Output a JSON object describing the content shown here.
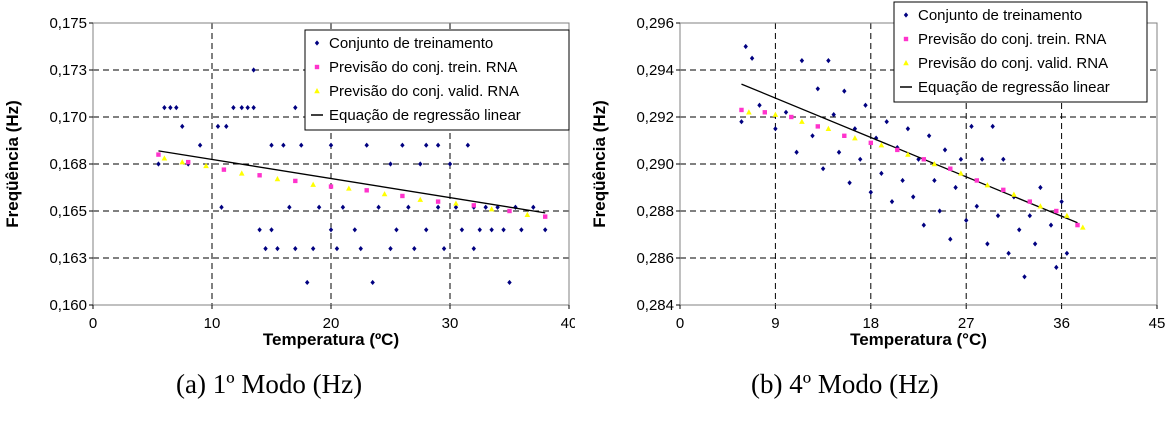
{
  "charts": [
    {
      "caption": "(a) 1º Modo (Hz)",
      "chart_data": {
        "type": "scatter",
        "xlabel": "Temperatura (ºC)",
        "ylabel": "Freqüência (Hz)",
        "xlim": [
          0,
          40
        ],
        "ylim": [
          0.16,
          0.175
        ],
        "x_ticks": [
          "0",
          "10",
          "20",
          "30",
          "40"
        ],
        "y_ticks": [
          "0,160",
          "0,163",
          "0,165",
          "0,168",
          "0,170",
          "0,173",
          "0,175"
        ],
        "grid": true,
        "legend_position": "top-right",
        "series": [
          {
            "name": "Conjunto de treinamento",
            "marker": "diamond",
            "color": "#000080",
            "points": [
              [
                5.5,
                0.1675
              ],
              [
                6,
                0.1705
              ],
              [
                6.5,
                0.1705
              ],
              [
                7,
                0.1705
              ],
              [
                7.5,
                0.1695
              ],
              [
                8,
                0.1675
              ],
              [
                9,
                0.1685
              ],
              [
                10.5,
                0.1695
              ],
              [
                10.8,
                0.1652
              ],
              [
                11.2,
                0.1695
              ],
              [
                11.8,
                0.1705
              ],
              [
                12.5,
                0.1705
              ],
              [
                13,
                0.1705
              ],
              [
                13.5,
                0.1705
              ],
              [
                13.5,
                0.1725
              ],
              [
                14,
                0.164
              ],
              [
                14.5,
                0.163
              ],
              [
                15,
                0.164
              ],
              [
                15,
                0.1685
              ],
              [
                15.5,
                0.163
              ],
              [
                16,
                0.1685
              ],
              [
                16.5,
                0.1652
              ],
              [
                17,
                0.163
              ],
              [
                17,
                0.1705
              ],
              [
                17.5,
                0.1685
              ],
              [
                18,
                0.1612
              ],
              [
                18.5,
                0.163
              ],
              [
                19,
                0.1652
              ],
              [
                19.5,
                0.1705
              ],
              [
                20,
                0.164
              ],
              [
                20,
                0.1685
              ],
              [
                20.5,
                0.163
              ],
              [
                21,
                0.1652
              ],
              [
                21.5,
                0.1705
              ],
              [
                22,
                0.164
              ],
              [
                22.5,
                0.163
              ],
              [
                23,
                0.1685
              ],
              [
                23.5,
                0.1612
              ],
              [
                24,
                0.1652
              ],
              [
                24.5,
                0.1705
              ],
              [
                25,
                0.163
              ],
              [
                25,
                0.1675
              ],
              [
                25.5,
                0.164
              ],
              [
                26,
                0.1685
              ],
              [
                26.5,
                0.1652
              ],
              [
                27,
                0.163
              ],
              [
                27,
                0.1705
              ],
              [
                27.5,
                0.1675
              ],
              [
                28,
                0.1685
              ],
              [
                28,
                0.164
              ],
              [
                28.5,
                0.1695
              ],
              [
                29,
                0.1652
              ],
              [
                29,
                0.1685
              ],
              [
                29.5,
                0.163
              ],
              [
                30,
                0.1675
              ],
              [
                30,
                0.1705
              ],
              [
                30.5,
                0.1652
              ],
              [
                31,
                0.164
              ],
              [
                31.5,
                0.1685
              ],
              [
                32,
                0.1652
              ],
              [
                32,
                0.163
              ],
              [
                32.5,
                0.164
              ],
              [
                33,
                0.1652
              ],
              [
                33.5,
                0.164
              ],
              [
                34,
                0.1652
              ],
              [
                34.5,
                0.164
              ],
              [
                35,
                0.1612
              ],
              [
                35.5,
                0.1652
              ],
              [
                36,
                0.164
              ],
              [
                37,
                0.1652
              ],
              [
                38,
                0.164
              ]
            ]
          },
          {
            "name": "Previsão do conj. trein. RNA",
            "marker": "square",
            "color": "#ff33cc",
            "points": [
              [
                5.5,
                0.168
              ],
              [
                8,
                0.1676
              ],
              [
                11,
                0.1672
              ],
              [
                14,
                0.1669
              ],
              [
                17,
                0.1666
              ],
              [
                20,
                0.1663
              ],
              [
                23,
                0.1661
              ],
              [
                26,
                0.1658
              ],
              [
                29,
                0.1655
              ],
              [
                32,
                0.1653
              ],
              [
                35,
                0.165
              ],
              [
                38,
                0.1647
              ]
            ]
          },
          {
            "name": "Previsão do conj. valid. RNA",
            "marker": "triangle",
            "color": "#ffff00",
            "points": [
              [
                6,
                0.1678
              ],
              [
                7.5,
                0.1676
              ],
              [
                9.5,
                0.1674
              ],
              [
                12.5,
                0.167
              ],
              [
                15.5,
                0.1667
              ],
              [
                18.5,
                0.1664
              ],
              [
                21.5,
                0.1662
              ],
              [
                24.5,
                0.1659
              ],
              [
                27.5,
                0.1656
              ],
              [
                30.5,
                0.1654
              ],
              [
                33.5,
                0.1651
              ],
              [
                36.5,
                0.1648
              ]
            ]
          },
          {
            "name": "Equação de regressão linear",
            "marker": "line",
            "color": "#000000",
            "points": [
              [
                5.5,
                0.1682
              ],
              [
                38,
                0.1649
              ]
            ]
          }
        ]
      }
    },
    {
      "caption": "(b) 4º Modo (Hz)",
      "chart_data": {
        "type": "scatter",
        "xlabel": "Temperatura (°C)",
        "ylabel": "Freqüência (Hz)",
        "xlim": [
          0,
          45
        ],
        "ylim": [
          0.284,
          0.296
        ],
        "x_ticks": [
          "0",
          "9",
          "18",
          "27",
          "36",
          "45"
        ],
        "y_ticks": [
          "0,284",
          "0,286",
          "0,288",
          "0,290",
          "0,292",
          "0,294",
          "0,296"
        ],
        "grid": true,
        "legend_position": "top-right",
        "series": [
          {
            "name": "Conjunto de treinamento",
            "marker": "diamond",
            "color": "#000080",
            "points": [
              [
                5.8,
                0.2918
              ],
              [
                6.2,
                0.295
              ],
              [
                6.8,
                0.2945
              ],
              [
                7.5,
                0.2925
              ],
              [
                9,
                0.2915
              ],
              [
                10,
                0.2922
              ],
              [
                11,
                0.2905
              ],
              [
                11.5,
                0.2944
              ],
              [
                12.5,
                0.2912
              ],
              [
                13,
                0.2932
              ],
              [
                13.5,
                0.2898
              ],
              [
                14,
                0.2944
              ],
              [
                14.5,
                0.2921
              ],
              [
                15,
                0.2905
              ],
              [
                15.5,
                0.2931
              ],
              [
                16,
                0.2892
              ],
              [
                16.5,
                0.2915
              ],
              [
                17,
                0.2902
              ],
              [
                17.5,
                0.2925
              ],
              [
                18,
                0.2888
              ],
              [
                18.5,
                0.2911
              ],
              [
                19,
                0.2896
              ],
              [
                19.5,
                0.2918
              ],
              [
                20,
                0.2884
              ],
              [
                20.5,
                0.2907
              ],
              [
                21,
                0.2893
              ],
              [
                21.5,
                0.2915
              ],
              [
                22,
                0.2886
              ],
              [
                22.5,
                0.2902
              ],
              [
                23,
                0.2874
              ],
              [
                23.5,
                0.2912
              ],
              [
                24,
                0.2893
              ],
              [
                24.5,
                0.288
              ],
              [
                25,
                0.2906
              ],
              [
                25.5,
                0.2868
              ],
              [
                26,
                0.289
              ],
              [
                26.5,
                0.2902
              ],
              [
                27,
                0.2876
              ],
              [
                27.5,
                0.2916
              ],
              [
                28,
                0.2882
              ],
              [
                28.5,
                0.2902
              ],
              [
                29,
                0.2866
              ],
              [
                29.5,
                0.2916
              ],
              [
                30,
                0.2878
              ],
              [
                30.5,
                0.2902
              ],
              [
                31,
                0.2862
              ],
              [
                31.5,
                0.2886
              ],
              [
                32,
                0.2872
              ],
              [
                32.5,
                0.2852
              ],
              [
                33,
                0.2878
              ],
              [
                33.5,
                0.2866
              ],
              [
                34,
                0.289
              ],
              [
                35,
                0.2874
              ],
              [
                35.5,
                0.2856
              ],
              [
                36,
                0.2884
              ],
              [
                36.5,
                0.2862
              ]
            ]
          },
          {
            "name": "Previsão do conj. trein. RNA",
            "marker": "square",
            "color": "#ff33cc",
            "points": [
              [
                5.8,
                0.2923
              ],
              [
                8,
                0.2922
              ],
              [
                10.5,
                0.292
              ],
              [
                13,
                0.2916
              ],
              [
                15.5,
                0.2912
              ],
              [
                18,
                0.2909
              ],
              [
                20.5,
                0.2906
              ],
              [
                23,
                0.2902
              ],
              [
                25.5,
                0.2898
              ],
              [
                28,
                0.2893
              ],
              [
                30.5,
                0.2889
              ],
              [
                33,
                0.2884
              ],
              [
                35.5,
                0.288
              ],
              [
                37.5,
                0.2874
              ]
            ]
          },
          {
            "name": "Previsão do conj. valid. RNA",
            "marker": "triangle",
            "color": "#ffff00",
            "points": [
              [
                6.5,
                0.2922
              ],
              [
                9,
                0.2921
              ],
              [
                11.5,
                0.2918
              ],
              [
                14,
                0.2915
              ],
              [
                16.5,
                0.2911
              ],
              [
                19,
                0.2908
              ],
              [
                21.5,
                0.2904
              ],
              [
                24,
                0.29
              ],
              [
                26.5,
                0.2896
              ],
              [
                29,
                0.2891
              ],
              [
                31.5,
                0.2887
              ],
              [
                34,
                0.2882
              ],
              [
                36.5,
                0.2878
              ],
              [
                38,
                0.2873
              ]
            ]
          },
          {
            "name": "Equação de regressão linear",
            "marker": "line",
            "color": "#000000",
            "points": [
              [
                5.8,
                0.2934
              ],
              [
                37.5,
                0.2875
              ]
            ]
          }
        ]
      }
    }
  ]
}
